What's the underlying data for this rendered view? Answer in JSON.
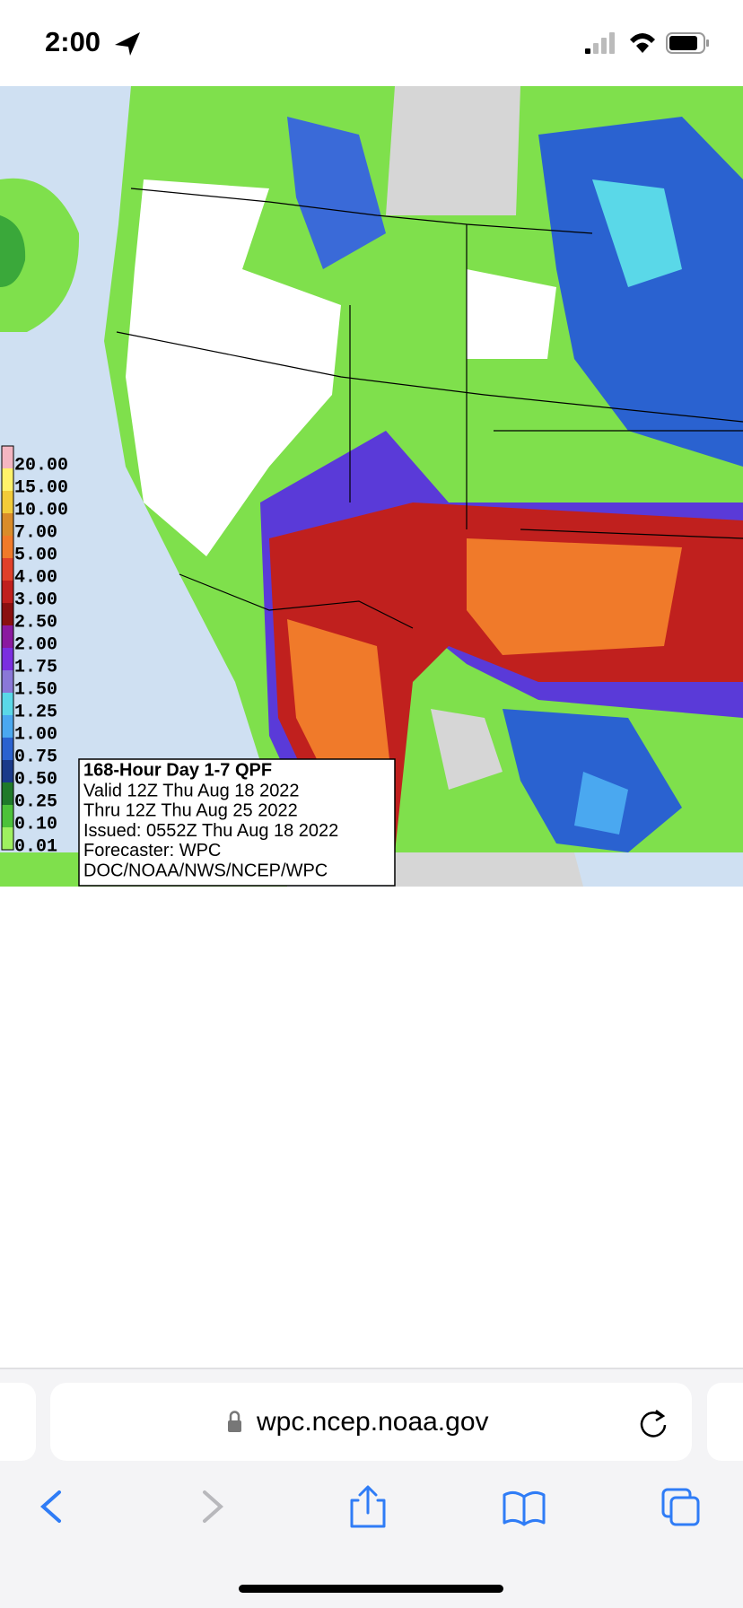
{
  "status_bar": {
    "time": "2:00"
  },
  "map": {
    "legend": [
      {
        "label": "20.00",
        "color": "#f4b6c2"
      },
      {
        "label": "15.00",
        "color": "#fff36a"
      },
      {
        "label": "10.00",
        "color": "#f2cc3a"
      },
      {
        "label": "7.00",
        "color": "#d98c2a"
      },
      {
        "label": "5.00",
        "color": "#f07a2a"
      },
      {
        "label": "4.00",
        "color": "#e0402a"
      },
      {
        "label": "3.00",
        "color": "#c0201e"
      },
      {
        "label": "2.50",
        "color": "#8a1010"
      },
      {
        "label": "2.00",
        "color": "#8a1aa0"
      },
      {
        "label": "1.75",
        "color": "#7a2fe0"
      },
      {
        "label": "1.50",
        "color": "#8a78d8"
      },
      {
        "label": "1.25",
        "color": "#5ad8e8"
      },
      {
        "label": "1.00",
        "color": "#4aa8f0"
      },
      {
        "label": "0.75",
        "color": "#2a62d0"
      },
      {
        "label": "0.50",
        "color": "#1a3a8a"
      },
      {
        "label": "0.25",
        "color": "#1f7a2a"
      },
      {
        "label": "0.10",
        "color": "#4cc23a"
      },
      {
        "label": "0.01",
        "color": "#9ef060"
      }
    ],
    "info_box": {
      "title": "168-Hour Day 1-7 QPF",
      "lines": [
        "Valid 12Z Thu Aug 18 2022",
        "Thru 12Z Thu Aug 25 2022",
        "Issued: 0552Z Thu Aug 18 2022",
        "Forecaster: WPC",
        "DOC/NOAA/NWS/NCEP/WPC"
      ]
    }
  },
  "browser": {
    "url": "wpc.ncep.noaa.gov"
  }
}
